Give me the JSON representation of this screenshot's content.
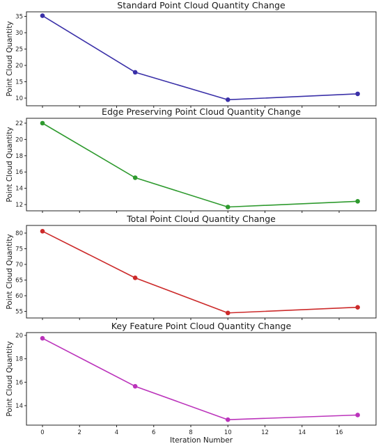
{
  "chart_data": [
    {
      "type": "line",
      "title": "Standard Point Cloud Quantity Change",
      "ylabel": "Point Cloud Quantity",
      "xlabel": "",
      "x": [
        0,
        5,
        10,
        17
      ],
      "series": [
        {
          "values": [
            35.2,
            17.9,
            9.5,
            11.3
          ]
        }
      ],
      "color": "#3a30a8",
      "yticks": [
        10,
        15,
        20,
        25,
        30,
        35
      ],
      "xticks": [
        0,
        2,
        4,
        6,
        8,
        10,
        12,
        14,
        16
      ],
      "show_xtick_labels": false,
      "grid": false
    },
    {
      "type": "line",
      "title": "Edge Preserving Point Cloud Quantity Change",
      "ylabel": "Point Cloud Quantity",
      "xlabel": "",
      "x": [
        0,
        5,
        10,
        17
      ],
      "series": [
        {
          "values": [
            22.0,
            15.3,
            11.7,
            12.4
          ]
        }
      ],
      "color": "#2e9a2e",
      "yticks": [
        12,
        14,
        16,
        18,
        20,
        22
      ],
      "xticks": [
        0,
        2,
        4,
        6,
        8,
        10,
        12,
        14,
        16
      ],
      "show_xtick_labels": false,
      "grid": false
    },
    {
      "type": "line",
      "title": "Total Point Cloud Quantity Change",
      "ylabel": "Point Cloud Quantity",
      "xlabel": "",
      "x": [
        0,
        5,
        10,
        17
      ],
      "series": [
        {
          "values": [
            80.6,
            65.7,
            54.5,
            56.3
          ]
        }
      ],
      "color": "#cc2a2a",
      "yticks": [
        55,
        60,
        65,
        70,
        75,
        80
      ],
      "xticks": [
        0,
        2,
        4,
        6,
        8,
        10,
        12,
        14,
        16
      ],
      "show_xtick_labels": false,
      "grid": false
    },
    {
      "type": "line",
      "title": "Key Feature Point Cloud Quantity Change",
      "ylabel": "Point Cloud Quantity",
      "xlabel": "Iteration Number",
      "x": [
        0,
        5,
        10,
        17
      ],
      "series": [
        {
          "values": [
            19.75,
            15.65,
            12.8,
            13.2
          ]
        }
      ],
      "color": "#bb33bb",
      "yticks": [
        14,
        16,
        18,
        20
      ],
      "xticks": [
        0,
        2,
        4,
        6,
        8,
        10,
        12,
        14,
        16
      ],
      "show_xtick_labels": true,
      "grid": false
    }
  ]
}
